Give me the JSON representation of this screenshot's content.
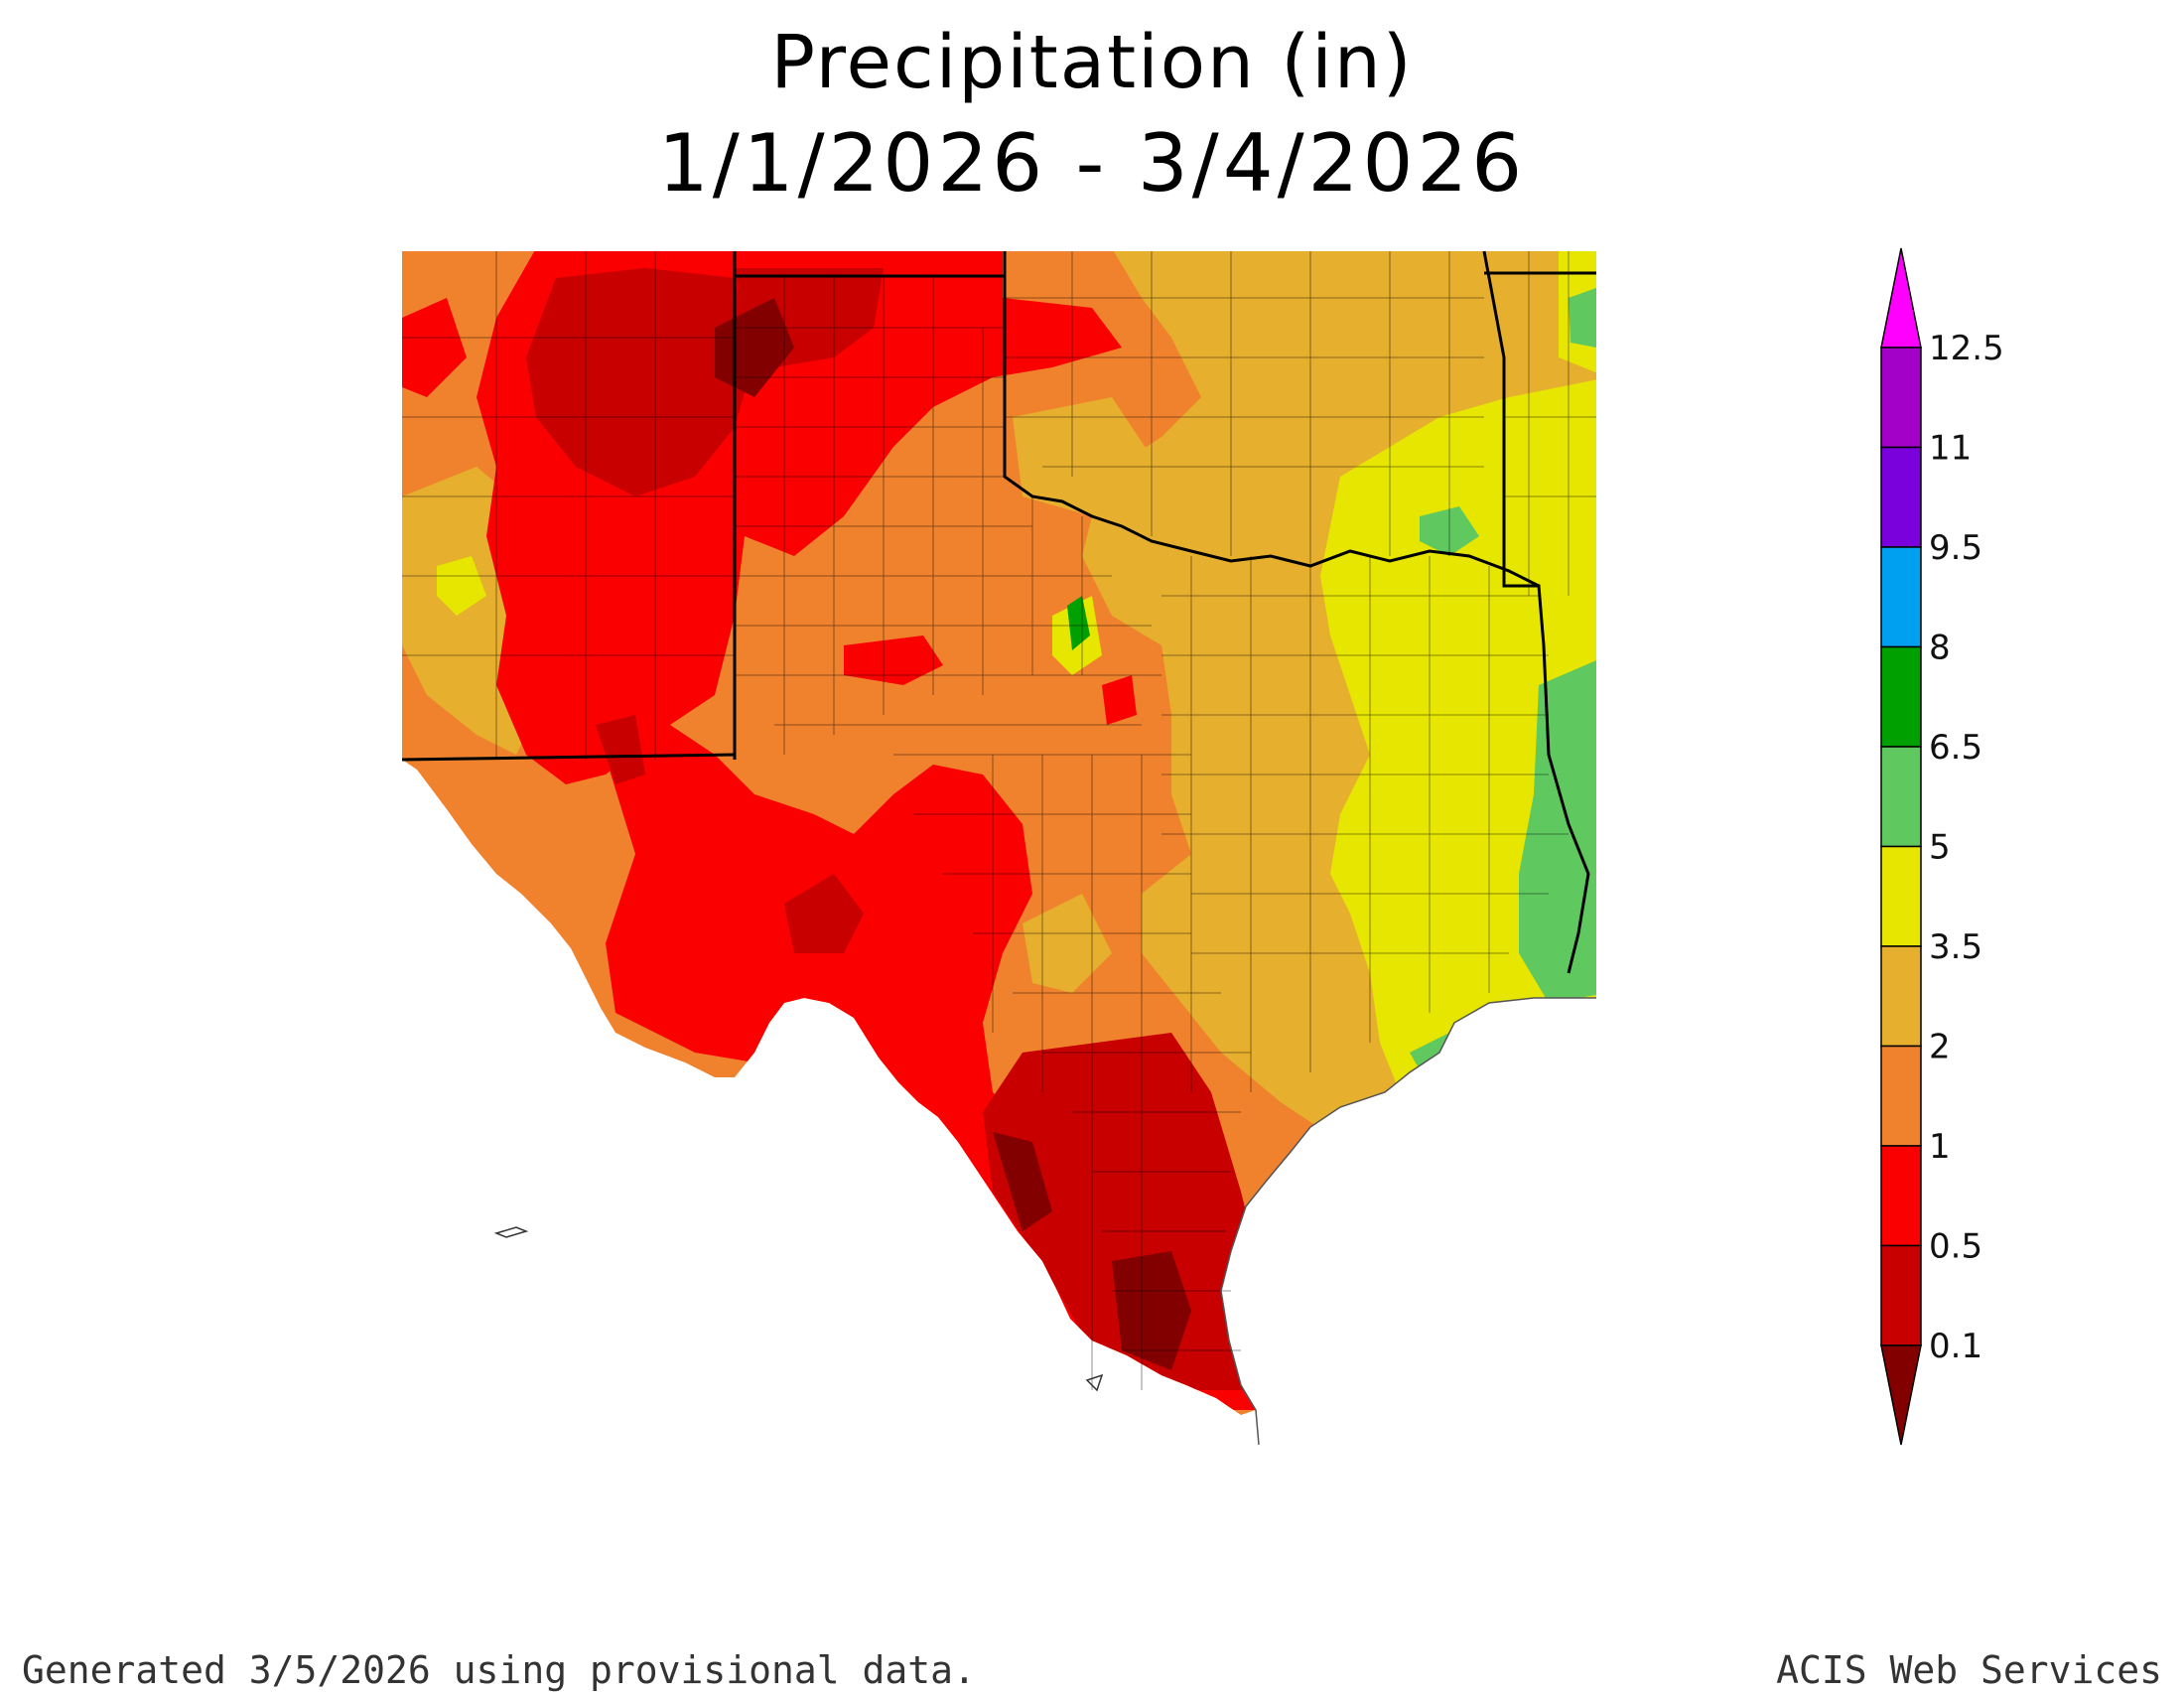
{
  "title": {
    "line1": "Precipitation (in)",
    "line2": "1/1/2026 - 3/4/2026"
  },
  "footer": {
    "generated": "Generated 3/5/2026  using provisional data.",
    "source": "ACIS Web Services"
  },
  "legend": {
    "thresholds": [
      "12.5",
      "11",
      "9.5",
      "8",
      "6.5",
      "5",
      "3.5",
      "2",
      "1",
      "0.5",
      "0.1"
    ],
    "bins": [
      {
        "range": "> 12.5",
        "color": "#ff00ff"
      },
      {
        "range": "11 - 12.5",
        "color": "#a300c8"
      },
      {
        "range": "9.5 - 11",
        "color": "#7a00dc"
      },
      {
        "range": "8 - 9.5",
        "color": "#00a0f0"
      },
      {
        "range": "6.5 - 8",
        "color": "#00a000"
      },
      {
        "range": "5 - 6.5",
        "color": "#5fc85f"
      },
      {
        "range": "3.5 - 5",
        "color": "#e6e600"
      },
      {
        "range": "2 - 3.5",
        "color": "#e6af2d"
      },
      {
        "range": "1 - 2",
        "color": "#f0822d"
      },
      {
        "range": "0.5 - 1",
        "color": "#fa0000"
      },
      {
        "range": "0.1 - 0.5",
        "color": "#c80000"
      },
      {
        "range": "< 0.1",
        "color": "#820000"
      }
    ]
  },
  "map": {
    "region": "Texas and surrounding states",
    "colors": {
      "very_dry": "#820000",
      "dry": "#c80000",
      "low": "#fa0000",
      "moderate": "#f0822d",
      "mid": "#e6af2d",
      "wet": "#e6e600",
      "wetter": "#5fc85f",
      "wettest": "#00a000"
    }
  }
}
